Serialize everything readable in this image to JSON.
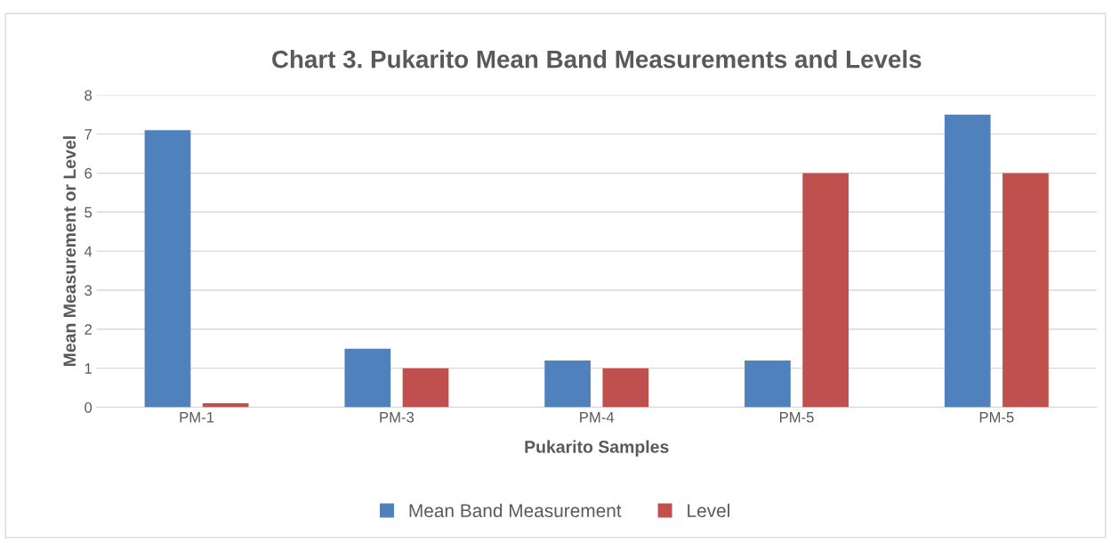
{
  "chart_data": {
    "type": "bar",
    "title": "Chart 3. Pukarito Mean Band Measurements and Levels",
    "xlabel": "Pukarito Samples",
    "ylabel": "Mean Measurement or Level",
    "categories": [
      "PM-1",
      "PM-3",
      "PM-4",
      "PM-5",
      "PM-5"
    ],
    "series": [
      {
        "name": "Mean Band Measurement",
        "color": "#4f81bd",
        "values": [
          7.1,
          1.5,
          1.2,
          1.2,
          7.5
        ]
      },
      {
        "name": "Level",
        "color": "#c0504d",
        "values": [
          0.1,
          1.0,
          1.0,
          6.0,
          6.0
        ]
      }
    ],
    "ylim": [
      0,
      8
    ],
    "yticks": [
      0,
      1,
      2,
      3,
      4,
      5,
      6,
      7,
      8
    ],
    "grid": "y",
    "legend": "bottom"
  }
}
